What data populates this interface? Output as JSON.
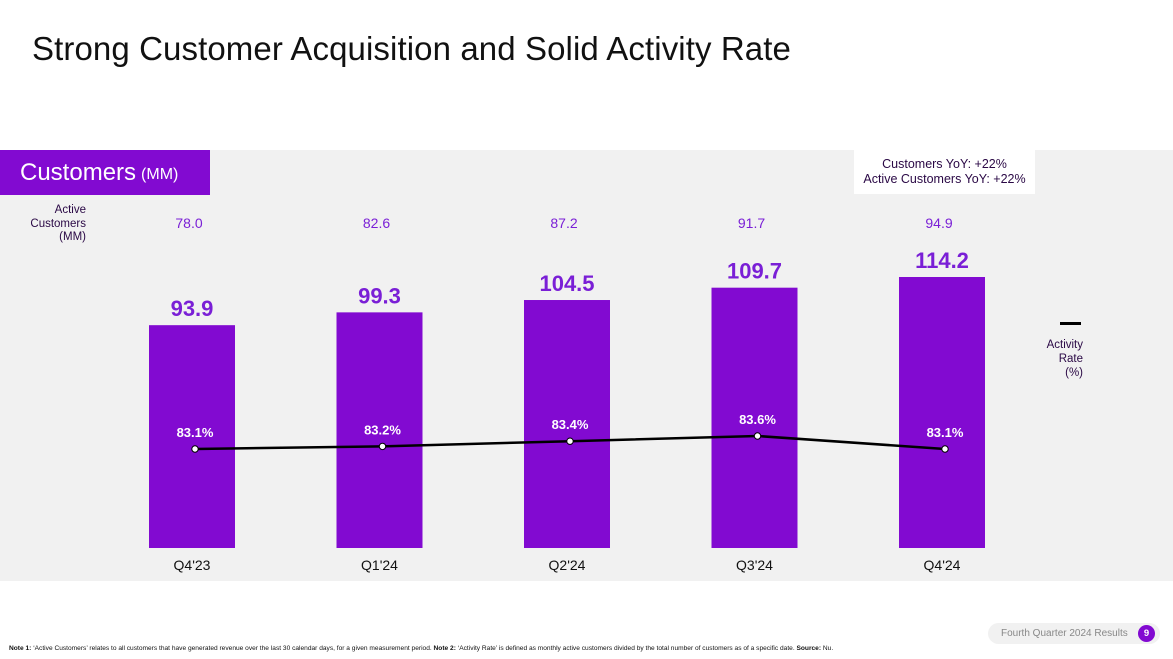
{
  "page": {
    "title": "Strong Customer Acquisition and Solid Activity Rate",
    "section_label": "Customers",
    "section_unit": "(MM)",
    "yoy_lines": [
      "Customers YoY: +22%",
      "Active Customers YoY: +22%"
    ],
    "active_row_label": [
      "Active",
      "Customers",
      "(MM)"
    ],
    "legend_label": [
      "Activity",
      "Rate",
      "(%)"
    ],
    "footnote": {
      "note1_label": "Note 1:",
      "note1_text": " ‘Active Customers’ relates to all customers that have generated revenue over the last 30 calendar days, for a given measurement period. ",
      "note2_label": "Note 2:",
      "note2_text": " ‘Activity Rate’ is defined as monthly active customers divided by the total number of customers as of a specific date. ",
      "source_label": "Source:",
      "source_text": " Nu."
    },
    "footer": {
      "label": "Fourth Quarter 2024 Results",
      "page_number": "9"
    },
    "colors": {
      "brand": "#820ad1",
      "panel": "#f1f1f1",
      "line": "#000000",
      "label_purple": "#7a1fd6",
      "dark_text": "#2a0845"
    }
  },
  "chart_data": {
    "type": "bar",
    "title": "Customers (MM)",
    "xlabel": "",
    "ylabel": "Customers (MM)",
    "ylim": [
      0,
      114.2
    ],
    "categories": [
      "Q4'23",
      "Q1'24",
      "Q2'24",
      "Q3'24",
      "Q4'24"
    ],
    "series": [
      {
        "name": "Customers (MM)",
        "type": "bar",
        "values": [
          93.9,
          99.3,
          104.5,
          109.7,
          114.2
        ],
        "labels": [
          "93.9",
          "99.3",
          "104.5",
          "109.7",
          "114.2"
        ]
      },
      {
        "name": "Active Customers (MM)",
        "type": "table-row",
        "values": [
          78.0,
          82.6,
          87.2,
          91.7,
          94.9
        ],
        "labels": [
          "78.0",
          "82.6",
          "87.2",
          "91.7",
          "94.9"
        ]
      },
      {
        "name": "Activity Rate (%)",
        "type": "line",
        "values": [
          83.1,
          83.2,
          83.4,
          83.6,
          83.1
        ],
        "labels": [
          "83.1%",
          "83.2%",
          "83.4%",
          "83.6%",
          "83.1%"
        ]
      }
    ],
    "legend": [
      {
        "name": "Activity Rate (%)",
        "marker": "line",
        "position": "right"
      }
    ],
    "grid": false
  }
}
